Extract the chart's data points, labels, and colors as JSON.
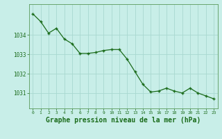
{
  "x": [
    0,
    1,
    2,
    3,
    4,
    5,
    6,
    7,
    8,
    9,
    10,
    11,
    12,
    13,
    14,
    15,
    16,
    17,
    18,
    19,
    20,
    21,
    22,
    23
  ],
  "y": [
    1035.1,
    1034.7,
    1034.1,
    1034.35,
    1033.8,
    1033.55,
    1033.05,
    1033.05,
    1033.1,
    1033.2,
    1033.25,
    1033.25,
    1032.75,
    1032.1,
    1031.45,
    1031.05,
    1031.1,
    1031.25,
    1031.1,
    1031.0,
    1031.25,
    1031.0,
    1030.85,
    1030.7
  ],
  "line_color": "#1a6b1a",
  "marker_color": "#1a6b1a",
  "bg_color": "#c8eee8",
  "grid_color": "#a8d8d0",
  "title": "Graphe pression niveau de la mer (hPa)",
  "title_color": "#1a6b1a",
  "title_fontsize": 7,
  "ylabel_ticks": [
    1031,
    1032,
    1033,
    1034
  ],
  "ylim": [
    1030.2,
    1035.6
  ],
  "xlim": [
    -0.5,
    23.5
  ],
  "tick_color": "#1a6b1a",
  "spine_color": "#5a9a5a"
}
